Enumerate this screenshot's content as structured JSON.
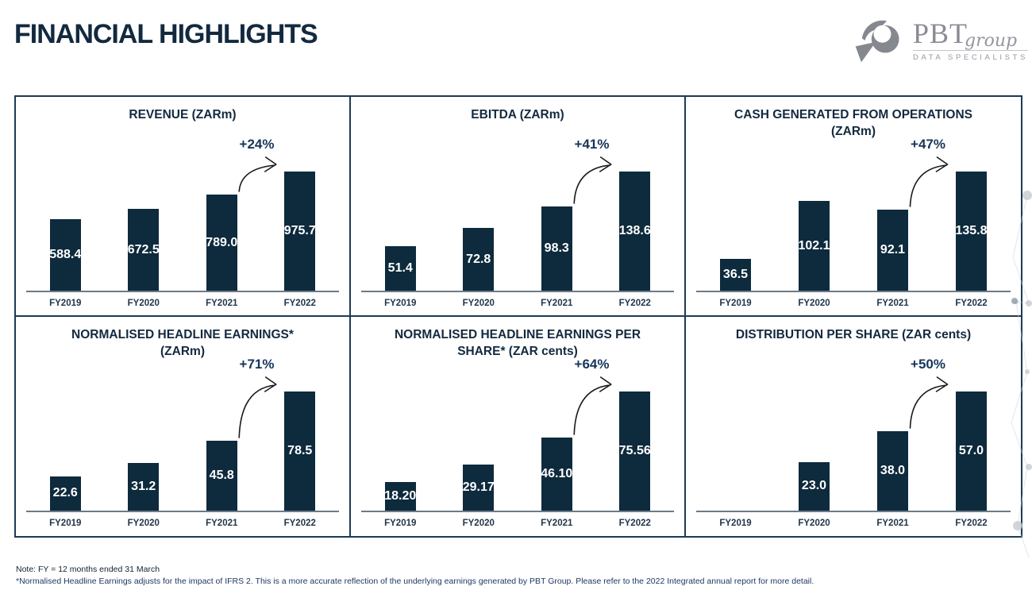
{
  "page": {
    "title": "FINANCIAL HIGHLIGHTS"
  },
  "logo": {
    "name": "PBT",
    "suffix": "group",
    "tagline": "DATA SPECIALISTS"
  },
  "notes": {
    "line1": "Note: FY = 12 months ended 31 March",
    "line2": "*Normalised Headline Earnings adjusts for the impact of IFRS 2. This is a more accurate reflection of the underlying earnings generated by PBT Group. Please refer to the 2022 Integrated annual report for more detail."
  },
  "colors": {
    "bar": "#0e2a3d",
    "panel_border": "#1d3a55",
    "title_text": "#13293f",
    "axis_line": "#6b7a87",
    "growth_text": "#16355a",
    "note1_text": "#15222e",
    "note2_text": "#1f3864"
  },
  "chart_data": [
    {
      "type": "bar",
      "title_lines": [
        "REVENUE (ZARm)"
      ],
      "categories": [
        "FY2019",
        "FY2020",
        "FY2021",
        "FY2022"
      ],
      "values": [
        588.4,
        672.5,
        789.0,
        975.7
      ],
      "labels": [
        "588.4",
        "672.5",
        "789.0",
        "975.7"
      ],
      "growth": "+24%",
      "legend": "none",
      "grid": "off"
    },
    {
      "type": "bar",
      "title_lines": [
        "EBITDA (ZARm)"
      ],
      "categories": [
        "FY2019",
        "FY2020",
        "FY2021",
        "FY2022"
      ],
      "values": [
        51.4,
        72.8,
        98.3,
        138.6
      ],
      "labels": [
        "51.4",
        "72.8",
        "98.3",
        "138.6"
      ],
      "growth": "+41%",
      "legend": "none",
      "grid": "off"
    },
    {
      "type": "bar",
      "title_lines": [
        "CASH GENERATED FROM OPERATIONS",
        "(ZARm)"
      ],
      "categories": [
        "FY2019",
        "FY2020",
        "FY2021",
        "FY2022"
      ],
      "values": [
        36.5,
        102.1,
        92.1,
        135.8
      ],
      "labels": [
        "36.5",
        "102.1",
        "92.1",
        "135.8"
      ],
      "growth": "+47%",
      "legend": "none",
      "grid": "off"
    },
    {
      "type": "bar",
      "title_lines": [
        "NORMALISED HEADLINE EARNINGS*",
        "(ZARm)"
      ],
      "categories": [
        "FY2019",
        "FY2020",
        "FY2021",
        "FY2022"
      ],
      "values": [
        22.6,
        31.2,
        45.8,
        78.5
      ],
      "labels": [
        "22.6",
        "31.2",
        "45.8",
        "78.5"
      ],
      "growth": "+71%",
      "legend": "none",
      "grid": "off"
    },
    {
      "type": "bar",
      "title_lines": [
        "NORMALISED HEADLINE EARNINGS PER",
        "SHARE* (ZAR cents)"
      ],
      "categories": [
        "FY2019",
        "FY2020",
        "FY2021",
        "FY2022"
      ],
      "values": [
        18.2,
        29.17,
        46.1,
        75.56
      ],
      "labels": [
        "18.20",
        "29.17",
        "46.10",
        "75.56"
      ],
      "growth": "+64%",
      "legend": "none",
      "grid": "off"
    },
    {
      "type": "bar",
      "title_lines": [
        "DISTRIBUTION PER SHARE (ZAR cents)"
      ],
      "categories": [
        "FY2019",
        "FY2020",
        "FY2021",
        "FY2022"
      ],
      "values": [
        null,
        23.0,
        38.0,
        57.0
      ],
      "labels": [
        "",
        "23.0",
        "38.0",
        "57.0"
      ],
      "growth": "+50%",
      "legend": "none",
      "grid": "off"
    }
  ]
}
